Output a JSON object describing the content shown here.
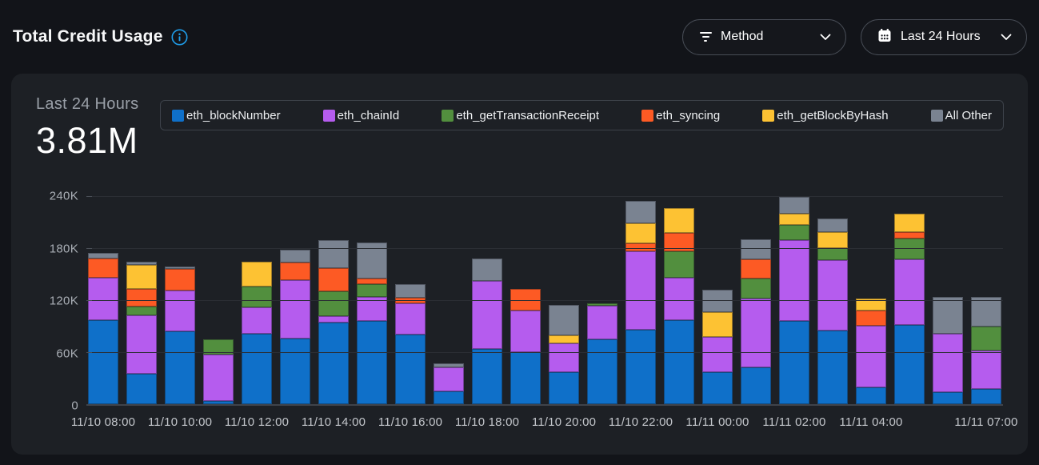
{
  "header": {
    "title": "Total Credit Usage",
    "method_filter": {
      "label": "Method"
    },
    "time_filter": {
      "label": "Last 24 Hours"
    }
  },
  "panel": {
    "period_label": "Last 24 Hours",
    "total": "3.81M"
  },
  "colors": {
    "page_bg": "#121419",
    "panel_bg": "#1d2025",
    "info_icon": "#1f9de9",
    "gridline": "#2b2e34",
    "axis_line": "#3f434b",
    "y_tick_text": "#a9aeb5",
    "x_tick_text": "#c3c6cb"
  },
  "chart_data": {
    "type": "bar",
    "stacked": true,
    "title": "Total Credit Usage",
    "xlabel": "",
    "ylabel": "",
    "ylim": [
      0,
      240000
    ],
    "grid": true,
    "legend_position": "top",
    "y_ticks": [
      {
        "label": "0",
        "pct": 0
      },
      {
        "label": "60K",
        "pct": 25
      },
      {
        "label": "120K",
        "pct": 50
      },
      {
        "label": "180K",
        "pct": 75
      },
      {
        "label": "240K",
        "pct": 100
      }
    ],
    "x": [
      "11/10 08:00",
      "11/10 09:00",
      "11/10 10:00",
      "11/10 11:00",
      "11/10 12:00",
      "11/10 13:00",
      "11/10 14:00",
      "11/10 15:00",
      "11/10 16:00",
      "11/10 17:00",
      "11/10 18:00",
      "11/10 19:00",
      "11/10 20:00",
      "11/10 21:00",
      "11/10 22:00",
      "11/10 23:00",
      "11/11 00:00",
      "11/11 01:00",
      "11/11 02:00",
      "11/11 03:00",
      "11/11 04:00",
      "11/11 05:00",
      "11/11 06:00",
      "11/11 07:00"
    ],
    "x_ticks_shown": [
      {
        "index": 0,
        "label": "11/10 08:00"
      },
      {
        "index": 2,
        "label": "11/10 10:00"
      },
      {
        "index": 4,
        "label": "11/10 12:00"
      },
      {
        "index": 6,
        "label": "11/10 14:00"
      },
      {
        "index": 8,
        "label": "11/10 16:00"
      },
      {
        "index": 10,
        "label": "11/10 18:00"
      },
      {
        "index": 12,
        "label": "11/10 20:00"
      },
      {
        "index": 14,
        "label": "11/10 22:00"
      },
      {
        "index": 16,
        "label": "11/11 00:00"
      },
      {
        "index": 18,
        "label": "11/11 02:00"
      },
      {
        "index": 20,
        "label": "11/11 04:00"
      },
      {
        "index": 23,
        "label": "11/11 07:00"
      }
    ],
    "series": [
      {
        "name": "eth_blockNumber",
        "color": "#0f70c9",
        "values": [
          96000,
          35000,
          83000,
          4000,
          81000,
          75000,
          93000,
          95000,
          80000,
          15000,
          63000,
          60000,
          37000,
          74000,
          85000,
          96000,
          37000,
          42000,
          95000,
          84000,
          19000,
          91000,
          14000,
          17000
        ]
      },
      {
        "name": "eth_chainId",
        "color": "#b55cee",
        "values": [
          49000,
          67000,
          47000,
          53000,
          30000,
          67000,
          8000,
          28000,
          35000,
          27000,
          78000,
          47000,
          33000,
          39000,
          90000,
          49000,
          40000,
          79000,
          93000,
          81000,
          71000,
          75000,
          67000,
          44000
        ]
      },
      {
        "name": "eth_getTransactionReceipt",
        "color": "#528f3e",
        "values": [
          0,
          10000,
          0,
          17000,
          24000,
          0,
          28000,
          14000,
          0,
          0,
          0,
          0,
          0,
          2000,
          0,
          30000,
          0,
          23000,
          17000,
          14000,
          0,
          24000,
          0,
          28000
        ]
      },
      {
        "name": "eth_syncing",
        "color": "#fd5a24",
        "values": [
          22000,
          20000,
          25000,
          0,
          0,
          20000,
          27000,
          7000,
          7000,
          0,
          0,
          25000,
          0,
          0,
          9000,
          21000,
          0,
          22000,
          0,
          0,
          17000,
          7000,
          0,
          0
        ]
      },
      {
        "name": "eth_getBlockByHash",
        "color": "#fdc233",
        "values": [
          0,
          27000,
          0,
          0,
          28000,
          0,
          0,
          0,
          0,
          0,
          0,
          0,
          9000,
          0,
          23000,
          28000,
          28000,
          0,
          13000,
          18000,
          14000,
          21000,
          0,
          0
        ]
      },
      {
        "name": "All Other",
        "color": "#7a8391",
        "values": [
          6000,
          4000,
          3000,
          0,
          0,
          15000,
          32000,
          41000,
          15000,
          5000,
          26000,
          0,
          35000,
          0,
          26000,
          0,
          26000,
          23000,
          19000,
          16000,
          0,
          0,
          42000,
          34000
        ]
      }
    ]
  }
}
